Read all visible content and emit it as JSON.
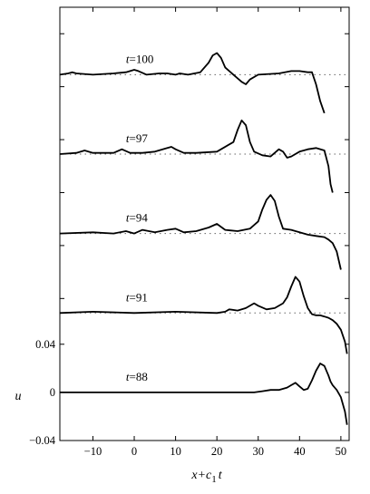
{
  "chart_data": {
    "type": "line",
    "title": "",
    "xlabel": "x+c",
    "xlabel_subscript": "1",
    "xlabel_suffix": "t",
    "ylabel": "u",
    "xlim": [
      -18,
      52
    ],
    "xticks": [
      -10,
      0,
      10,
      20,
      30,
      40,
      50
    ],
    "x_tick_labels": [
      "−10",
      "0",
      "10",
      "20",
      "30",
      "40",
      "50"
    ],
    "ylim": [
      -0.04,
      0.32
    ],
    "yticks": [
      -0.04,
      0,
      0.04
    ],
    "y_tick_labels": [
      "−0.04",
      "0",
      "0.04"
    ],
    "waterfall_offset": 0.066,
    "baseline_style": "dotted",
    "series": [
      {
        "name": "t=88",
        "label_prefix": "t",
        "label_value": "=88",
        "offset": 0,
        "x": [
          -18,
          -10,
          0,
          10,
          20,
          26,
          29,
          31,
          33,
          35,
          37,
          38,
          39,
          40,
          41,
          42,
          43,
          44,
          45,
          46,
          47,
          47.5,
          48,
          49,
          50,
          51,
          51.5
        ],
        "y": [
          0,
          0,
          0,
          0,
          0,
          0,
          0,
          0.001,
          0.002,
          0.002,
          0.004,
          0.006,
          0.008,
          0.005,
          0.002,
          0.003,
          0.01,
          0.018,
          0.024,
          0.022,
          0.014,
          0.009,
          0.006,
          0.002,
          -0.004,
          -0.016,
          -0.027
        ]
      },
      {
        "name": "t=91",
        "label_prefix": "t",
        "label_value": "=91",
        "offset": 0.066,
        "x": [
          -18,
          -10,
          0,
          10,
          20,
          22,
          23,
          25,
          27,
          29,
          30,
          32,
          34,
          36,
          37,
          38,
          39,
          40,
          41,
          42,
          43,
          44,
          45,
          46,
          47,
          48,
          49,
          50,
          51,
          51.5
        ],
        "y": [
          0,
          0.001,
          0,
          0.001,
          0,
          0.001,
          0.003,
          0.002,
          0.004,
          0.008,
          0.006,
          0.003,
          0.004,
          0.008,
          0.013,
          0.022,
          0.03,
          0.026,
          0.014,
          0.004,
          -0.001,
          -0.002,
          -0.002,
          -0.003,
          -0.004,
          -0.006,
          -0.009,
          -0.014,
          -0.024,
          -0.034
        ]
      },
      {
        "name": "t=94",
        "label_prefix": "t",
        "label_value": "=94",
        "offset": 0.132,
        "x": [
          -18,
          -10,
          -5,
          -2,
          0,
          2,
          5,
          8,
          10,
          12,
          15,
          18,
          20,
          22,
          25,
          28,
          30,
          31,
          32,
          33,
          34,
          35,
          36,
          38,
          40,
          42,
          44,
          46,
          47,
          48,
          49,
          50
        ],
        "y": [
          0,
          0.001,
          0,
          0.002,
          0,
          0.003,
          0.001,
          0.003,
          0.004,
          0.001,
          0.002,
          0.005,
          0.008,
          0.003,
          0.002,
          0.004,
          0.01,
          0.02,
          0.028,
          0.032,
          0.027,
          0.014,
          0.004,
          0.003,
          0.001,
          -0.001,
          -0.002,
          -0.003,
          -0.005,
          -0.008,
          -0.015,
          -0.03
        ]
      },
      {
        "name": "t=97",
        "label_prefix": "t",
        "label_value": "=97",
        "offset": 0.198,
        "x": [
          -18,
          -14,
          -12,
          -10,
          -5,
          -3,
          -1,
          2,
          5,
          8,
          9,
          10,
          12,
          15,
          20,
          24,
          25,
          26,
          27,
          28,
          29,
          31,
          33,
          35,
          36,
          37,
          38,
          40,
          42,
          44,
          46,
          47,
          47.5,
          48
        ],
        "y": [
          0,
          0.001,
          0.003,
          0.001,
          0.001,
          0.004,
          0.001,
          0.001,
          0.002,
          0.005,
          0.006,
          0.004,
          0.001,
          0.001,
          0.002,
          0.01,
          0.02,
          0.028,
          0.024,
          0.01,
          0.002,
          -0.001,
          -0.002,
          0.004,
          0.002,
          -0.003,
          -0.002,
          0.002,
          0.004,
          0.005,
          0.003,
          -0.01,
          -0.025,
          -0.032
        ]
      },
      {
        "name": "t=100",
        "label_prefix": "t",
        "label_value": "=100",
        "offset": 0.264,
        "x": [
          -18,
          -16,
          -15,
          -14,
          -10,
          -5,
          -2,
          0,
          1,
          3,
          6,
          8,
          10,
          11,
          13,
          16,
          18,
          19,
          20,
          21,
          22,
          24,
          26,
          27,
          28,
          30,
          35,
          38,
          40,
          42,
          43,
          44,
          45,
          46
        ],
        "y": [
          0,
          0.001,
          0.002,
          0.001,
          0,
          0.001,
          0.002,
          0.004,
          0.003,
          0,
          0.001,
          0.001,
          0,
          0.001,
          0,
          0.002,
          0.01,
          0.016,
          0.018,
          0.014,
          0.006,
          0,
          -0.006,
          -0.008,
          -0.004,
          0,
          0.001,
          0.003,
          0.003,
          0.002,
          0.002,
          -0.008,
          -0.022,
          -0.032
        ]
      }
    ]
  }
}
